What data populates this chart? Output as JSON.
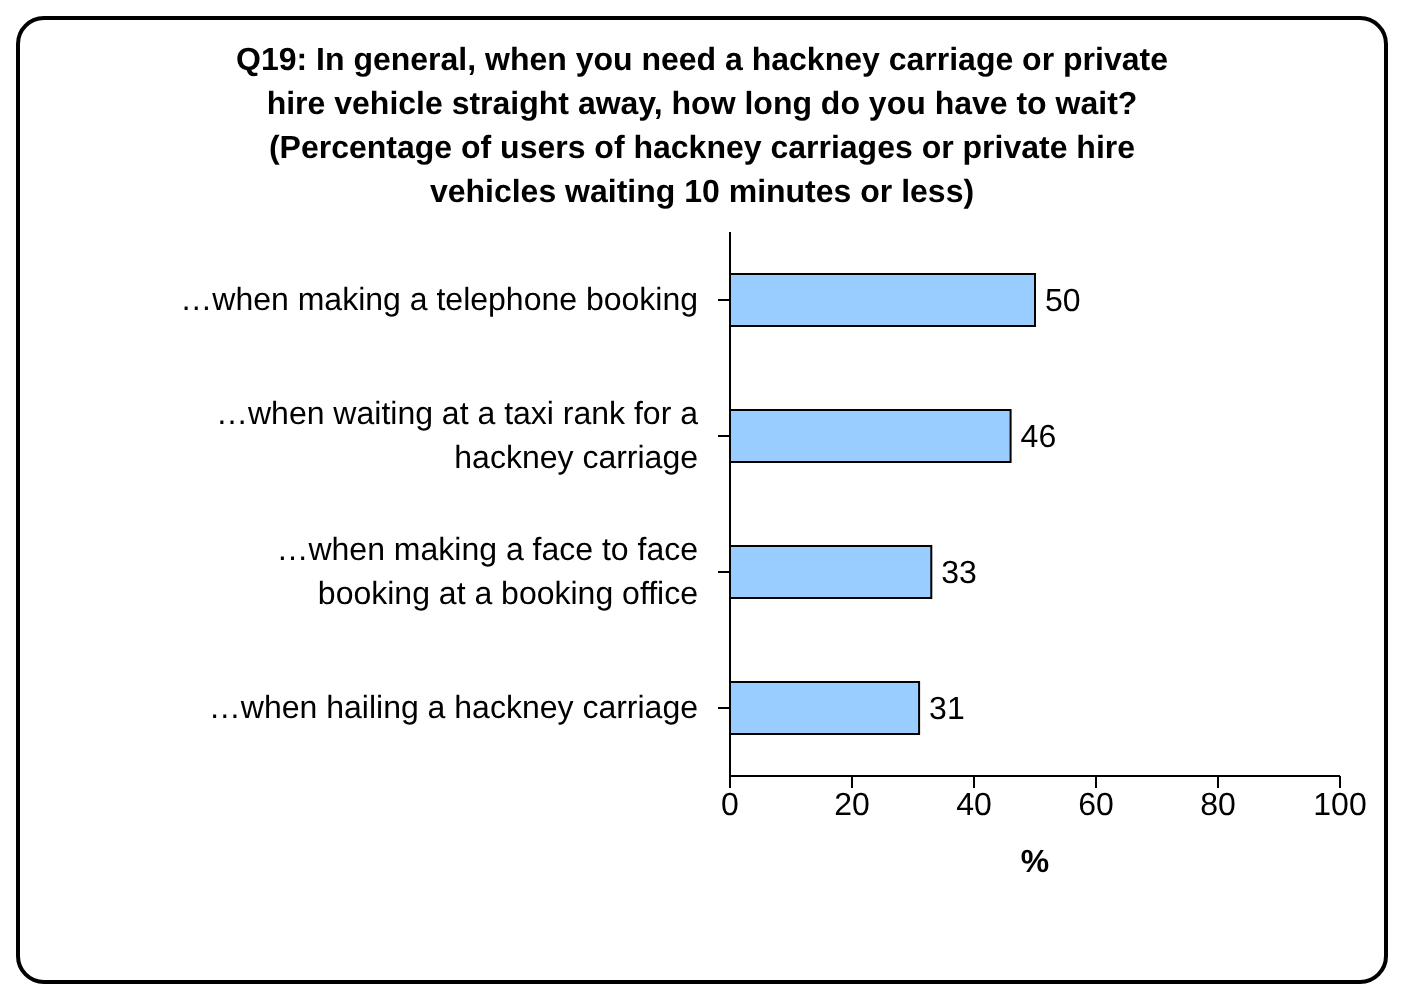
{
  "chart_data": {
    "type": "bar",
    "orientation": "horizontal",
    "title": "Q19: In general, when you need a hackney carriage or private hire vehicle straight away, how long do you have to wait? (Percentage of users of hackney carriages or private hire vehicles waiting 10 minutes or less)",
    "categories": [
      "…when making a telephone booking",
      "…when waiting at a taxi rank for a hackney carriage",
      "…when making a face to face booking at a booking office",
      "…when hailing a hackney carriage"
    ],
    "values": [
      50,
      46,
      33,
      31
    ],
    "color": "#99ccff",
    "xlim": [
      0,
      100
    ],
    "xticks": [
      0,
      20,
      40,
      60,
      80,
      100
    ],
    "xlabel": "%",
    "data_labels": true,
    "grid": false
  }
}
